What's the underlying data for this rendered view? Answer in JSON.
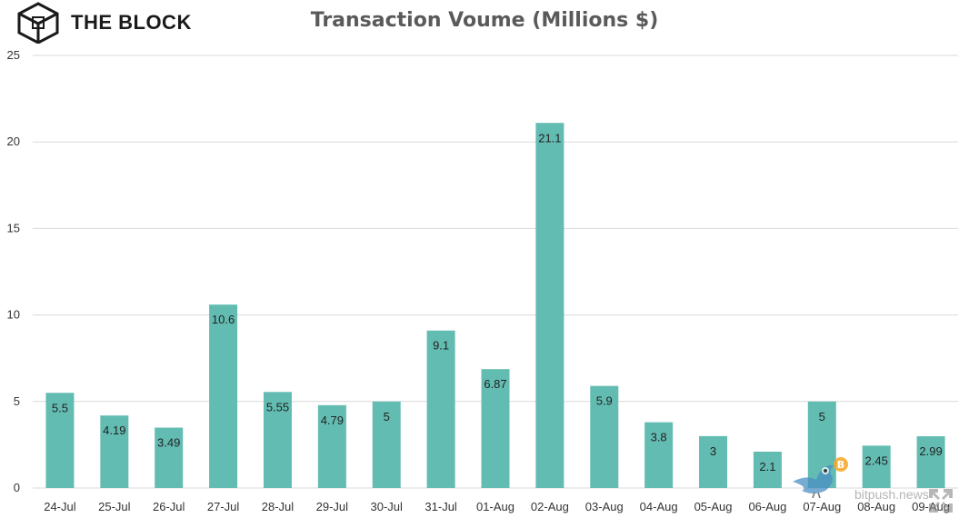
{
  "brand": {
    "name": "THE BLOCK",
    "logo_icon": "cube-logo-icon"
  },
  "watermark": {
    "text": "bitpush.news",
    "icon": "bird-icon",
    "badge_icon": "bitcoin-icon",
    "expand_icon": "expand-icon"
  },
  "colors": {
    "bar": "#63bcb2",
    "grid": "#d9d9d9",
    "title": "#5a5a5a"
  },
  "chart_data": {
    "type": "bar",
    "title": "Transaction Voume (Millions $)",
    "xlabel": "",
    "ylabel": "",
    "categories": [
      "24-Jul",
      "25-Jul",
      "26-Jul",
      "27-Jul",
      "28-Jul",
      "29-Jul",
      "30-Jul",
      "31-Jul",
      "01-Aug",
      "02-Aug",
      "03-Aug",
      "04-Aug",
      "05-Aug",
      "06-Aug",
      "07-Aug",
      "08-Aug",
      "09-Aug"
    ],
    "values": [
      5.5,
      4.19,
      3.49,
      10.6,
      5.55,
      4.79,
      5,
      9.1,
      6.87,
      21.1,
      5.9,
      3.8,
      3,
      2.1,
      5,
      2.45,
      2.99
    ],
    "data_labels": [
      "5.5",
      "4.19",
      "3.49",
      "10.6",
      "5.55",
      "4.79",
      "5",
      "9.1",
      "6.87",
      "21.1",
      "5.9",
      "3.8",
      "3",
      "2.1",
      "5",
      "2.45",
      "2.99"
    ],
    "ylim": [
      0,
      25
    ],
    "yticks": [
      0,
      5,
      10,
      15,
      20,
      25
    ],
    "grid": true,
    "legend": "none"
  }
}
